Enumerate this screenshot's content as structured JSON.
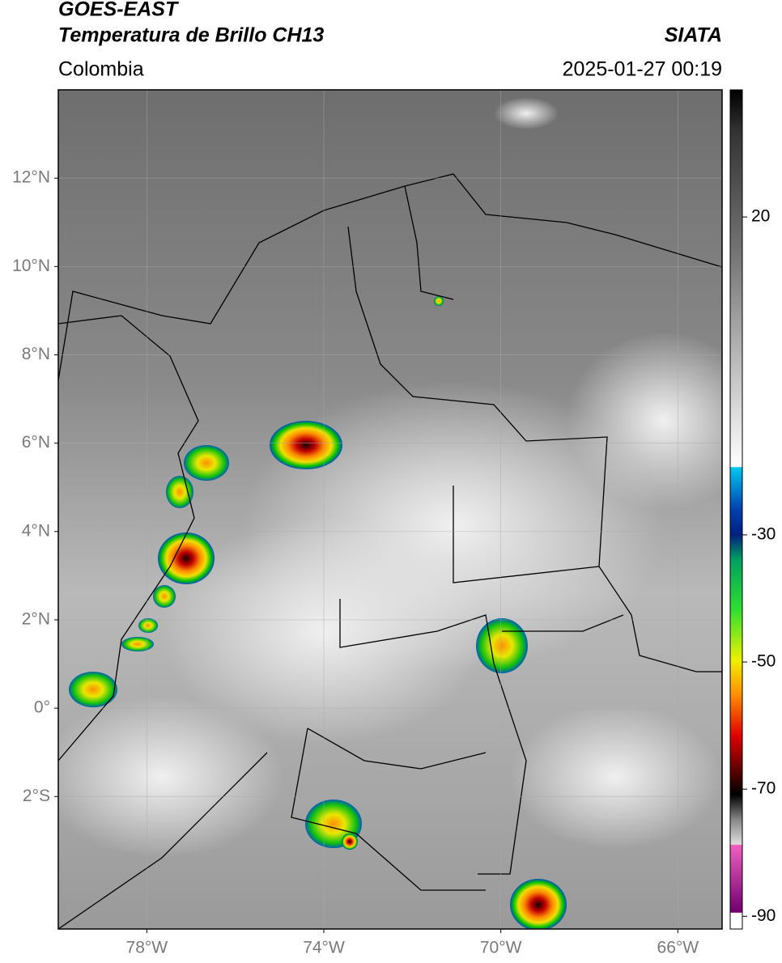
{
  "header": {
    "satellite": "GOES-EAST",
    "product": "Temperatura de Brillo CH13",
    "source": "SIATA",
    "region": "Colombia",
    "timestamp": "2025-01-27 00:19"
  },
  "map": {
    "xlim": [
      -80,
      -65
    ],
    "ylim": [
      -5,
      14
    ],
    "xticks": [
      {
        "value": -78,
        "label": "78°W"
      },
      {
        "value": -74,
        "label": "74°W"
      },
      {
        "value": -70,
        "label": "70°W"
      },
      {
        "value": -66,
        "label": "66°W"
      }
    ],
    "yticks": [
      {
        "value": 12,
        "label": "12°N"
      },
      {
        "value": 10,
        "label": "10°N"
      },
      {
        "value": 8,
        "label": "8°N"
      },
      {
        "value": 6,
        "label": "6°N"
      },
      {
        "value": 4,
        "label": "4°N"
      },
      {
        "value": 2,
        "label": "2°N"
      },
      {
        "value": 0,
        "label": "0°"
      },
      {
        "value": -2,
        "label": "2°S"
      }
    ],
    "grid": true
  },
  "colorbar": {
    "clim": [
      -92,
      40
    ],
    "ticks": [
      20,
      -30,
      -50,
      -70,
      -90
    ]
  }
}
